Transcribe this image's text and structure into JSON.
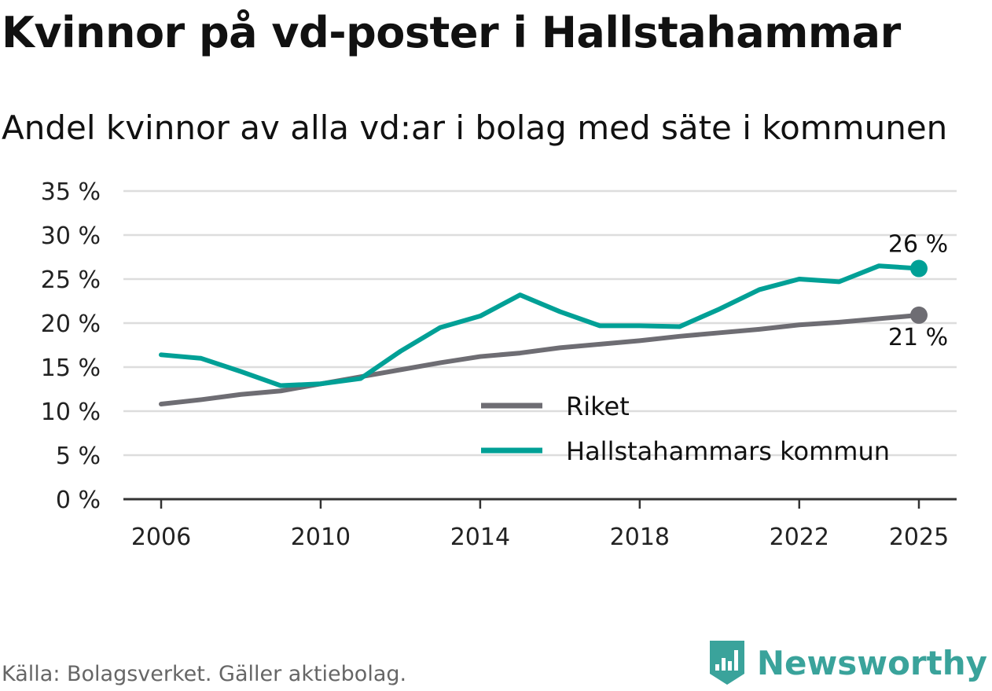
{
  "title": "Kvinnor på vd-poster i Hallstahammar",
  "subtitle": "Andel kvinnor av alla vd:ar i bolag med säte i kommunen",
  "source": "Källa: Bolagsverket. Gäller aktiebolag.",
  "brand": {
    "name": "Newsworthy",
    "logo_icon": "newsworthy-logo-icon",
    "color": "#3aa39b"
  },
  "chart_data": {
    "type": "line",
    "title": "Kvinnor på vd-poster i Hallstahammar",
    "ylabel": "",
    "xlabel": "",
    "ylim": [
      0,
      35
    ],
    "xlim": [
      2006,
      2025
    ],
    "y_ticks": [
      0,
      5,
      10,
      15,
      20,
      25,
      30,
      35
    ],
    "y_tick_labels": [
      "0 %",
      "5 %",
      "10 %",
      "15 %",
      "20 %",
      "25 %",
      "30 %",
      "35 %"
    ],
    "x_ticks": [
      2006,
      2010,
      2014,
      2018,
      2022,
      2025
    ],
    "x_tick_labels": [
      "2006",
      "2010",
      "2014",
      "2018",
      "2022",
      "2025"
    ],
    "grid": true,
    "legend_position": "bottom-right",
    "x": [
      2006,
      2007,
      2008,
      2009,
      2010,
      2011,
      2012,
      2013,
      2014,
      2015,
      2016,
      2017,
      2018,
      2019,
      2020,
      2021,
      2022,
      2023,
      2024,
      2025
    ],
    "series": [
      {
        "name": "Riket",
        "color": "#6e6d73",
        "values": [
          10.8,
          11.3,
          11.9,
          12.3,
          13.1,
          13.9,
          14.7,
          15.5,
          16.2,
          16.6,
          17.2,
          17.6,
          18.0,
          18.5,
          18.9,
          19.3,
          19.8,
          20.1,
          20.5,
          20.9
        ],
        "end_label": "21 %"
      },
      {
        "name": "Hallstahammars kommun",
        "color": "#00a096",
        "values": [
          16.4,
          16.0,
          14.5,
          12.9,
          13.1,
          13.7,
          16.8,
          19.5,
          20.8,
          23.2,
          21.3,
          19.7,
          19.7,
          19.6,
          21.6,
          23.8,
          25.0,
          24.7,
          26.5,
          26.2
        ],
        "end_label": "26 %"
      }
    ]
  }
}
